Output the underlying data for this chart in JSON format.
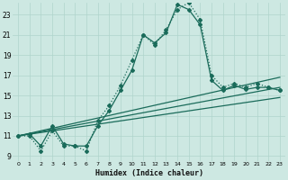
{
  "xlabel": "Humidex (Indice chaleur)",
  "background_color": "#cde8e2",
  "line_color": "#1a6b5a",
  "grid_color": "#afd4cc",
  "xlim": [
    -0.5,
    23.5
  ],
  "ylim": [
    8.5,
    24.2
  ],
  "xticks": [
    0,
    1,
    2,
    3,
    4,
    5,
    6,
    7,
    8,
    9,
    10,
    11,
    12,
    13,
    14,
    15,
    16,
    17,
    18,
    19,
    20,
    21,
    22,
    23
  ],
  "yticks": [
    9,
    11,
    13,
    15,
    17,
    19,
    21,
    23
  ],
  "curve_dotted_x": [
    0,
    1,
    2,
    3,
    4,
    5,
    6,
    7,
    8,
    9,
    10,
    11,
    12,
    13,
    14,
    15,
    16,
    17,
    18,
    19,
    20,
    21,
    22,
    23
  ],
  "curve_dotted_y": [
    11,
    11,
    9.5,
    11.5,
    10,
    10,
    9.5,
    12.5,
    14,
    16,
    18.5,
    21,
    20,
    21.5,
    23.5,
    24.2,
    22.5,
    17,
    15.8,
    16.2,
    15.8,
    16.2,
    15.8,
    15.5
  ],
  "curve_solid_x": [
    0,
    1,
    2,
    3,
    4,
    5,
    6,
    7,
    8,
    9,
    10,
    11,
    12,
    13,
    14,
    15,
    16,
    17,
    18,
    19,
    20,
    21,
    22,
    23
  ],
  "curve_solid_y": [
    11,
    11.2,
    10,
    12,
    10.2,
    10,
    10,
    12,
    13.5,
    15.5,
    17.5,
    21,
    20.2,
    21.2,
    24,
    23.5,
    22,
    16.5,
    15.5,
    16,
    15.6,
    15.8,
    15.8,
    15.5
  ],
  "line1_x": [
    0,
    23
  ],
  "line1_y": [
    11,
    14.8
  ],
  "line2_x": [
    0,
    23
  ],
  "line2_y": [
    11,
    15.8
  ],
  "line3_x": [
    0,
    23
  ],
  "line3_y": [
    11,
    16.8
  ]
}
